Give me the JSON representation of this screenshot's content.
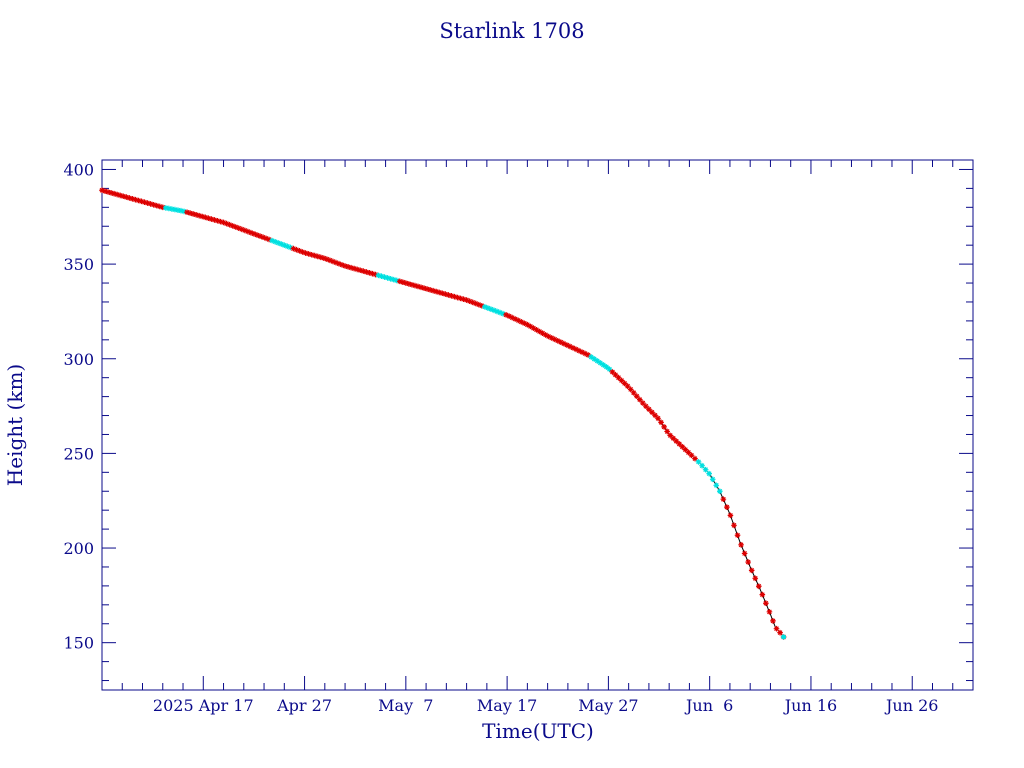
{
  "chart_data": {
    "type": "line",
    "title": "Starlink 1708",
    "xlabel": "Time(UTC)",
    "ylabel": "Height (km)",
    "x_unit": "days since 2025 Apr 7 00:00 UTC",
    "xlim": [
      0,
      86
    ],
    "ylim": [
      125,
      405
    ],
    "y_ticks": [
      150,
      200,
      250,
      300,
      350,
      400
    ],
    "x_tick_labels": [
      {
        "x": 10,
        "label": "2025 Apr 17"
      },
      {
        "x": 20,
        "label": "Apr 27"
      },
      {
        "x": 30,
        "label": "May  7"
      },
      {
        "x": 40,
        "label": "May 17"
      },
      {
        "x": 50,
        "label": "May 27"
      },
      {
        "x": 60,
        "label": "Jun  6"
      },
      {
        "x": 70,
        "label": "Jun 16"
      },
      {
        "x": 80,
        "label": "Jun 26"
      }
    ],
    "grid": false,
    "legend": "none",
    "series": [
      {
        "color": "#000000",
        "marker_colors": [
          "#dd0000",
          "#00e0e0"
        ],
        "x": [
          0,
          2,
          4,
          6,
          8,
          10,
          12,
          14,
          16,
          18,
          20,
          22,
          24,
          26,
          28,
          30,
          32,
          34,
          36,
          38,
          40,
          42,
          44,
          46,
          48,
          50,
          52,
          53.5,
          55,
          56,
          57,
          58,
          59,
          60,
          61,
          62,
          63,
          64,
          65,
          66,
          66.5,
          67,
          67.3
        ],
        "y": [
          389,
          386,
          383,
          380,
          378,
          375,
          372,
          368,
          364,
          360,
          356,
          353,
          349,
          346,
          343,
          340,
          337,
          334,
          331,
          327,
          323,
          318,
          312,
          307,
          302,
          295,
          285,
          276,
          268,
          260,
          255,
          250,
          245,
          239,
          230,
          218,
          203,
          190,
          178,
          165,
          158,
          155,
          153
        ]
      }
    ]
  }
}
